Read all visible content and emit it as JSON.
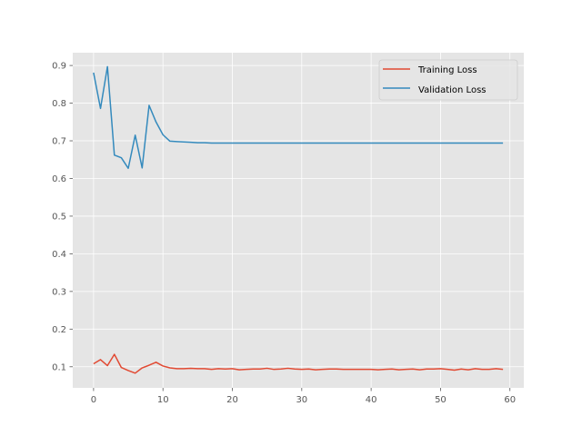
{
  "chart_data": {
    "type": "line",
    "title": "",
    "xlabel": "",
    "ylabel": "",
    "xlim": [
      -3,
      62
    ],
    "ylim": [
      0.044,
      0.934
    ],
    "x_ticks": [
      0,
      10,
      20,
      30,
      40,
      50,
      60
    ],
    "y_ticks": [
      0.1,
      0.2,
      0.3,
      0.4,
      0.5,
      0.6,
      0.7,
      0.8,
      0.9
    ],
    "grid": true,
    "legend_position": "top-right",
    "series": [
      {
        "name": "Training Loss",
        "color": "#e24a33",
        "x": [
          0,
          1,
          2,
          3,
          4,
          5,
          6,
          7,
          8,
          9,
          10,
          11,
          12,
          13,
          14,
          15,
          16,
          17,
          18,
          19,
          20,
          21,
          22,
          23,
          24,
          25,
          26,
          27,
          28,
          29,
          30,
          31,
          32,
          33,
          34,
          35,
          36,
          37,
          38,
          39,
          40,
          41,
          42,
          43,
          44,
          45,
          46,
          47,
          48,
          49,
          50,
          51,
          52,
          53,
          54,
          55,
          56,
          57,
          58,
          59
        ],
        "values": [
          0.108,
          0.119,
          0.103,
          0.133,
          0.098,
          0.09,
          0.083,
          0.097,
          0.104,
          0.112,
          0.102,
          0.097,
          0.095,
          0.095,
          0.096,
          0.095,
          0.095,
          0.093,
          0.095,
          0.094,
          0.095,
          0.092,
          0.093,
          0.094,
          0.094,
          0.096,
          0.093,
          0.094,
          0.096,
          0.094,
          0.093,
          0.094,
          0.092,
          0.093,
          0.094,
          0.094,
          0.093,
          0.093,
          0.093,
          0.093,
          0.093,
          0.092,
          0.093,
          0.094,
          0.092,
          0.093,
          0.094,
          0.092,
          0.094,
          0.094,
          0.095,
          0.093,
          0.091,
          0.094,
          0.092,
          0.095,
          0.093,
          0.093,
          0.095,
          0.093
        ]
      },
      {
        "name": "Validation Loss",
        "color": "#348abd",
        "x": [
          0,
          1,
          2,
          3,
          4,
          5,
          6,
          7,
          8,
          9,
          10,
          11,
          12,
          13,
          14,
          15,
          16,
          17,
          18,
          19,
          20,
          21,
          22,
          23,
          24,
          25,
          26,
          27,
          28,
          29,
          30,
          31,
          32,
          33,
          34,
          35,
          36,
          37,
          38,
          39,
          40,
          41,
          42,
          43,
          44,
          45,
          46,
          47,
          48,
          49,
          50,
          51,
          52,
          53,
          54,
          55,
          56,
          57,
          58,
          59
        ],
        "values": [
          0.881,
          0.786,
          0.897,
          0.662,
          0.655,
          0.627,
          0.715,
          0.628,
          0.794,
          0.75,
          0.716,
          0.699,
          0.698,
          0.697,
          0.696,
          0.695,
          0.695,
          0.694,
          0.694,
          0.694,
          0.694,
          0.694,
          0.694,
          0.694,
          0.694,
          0.694,
          0.694,
          0.694,
          0.694,
          0.694,
          0.694,
          0.694,
          0.694,
          0.694,
          0.694,
          0.694,
          0.694,
          0.694,
          0.694,
          0.694,
          0.694,
          0.694,
          0.694,
          0.694,
          0.694,
          0.694,
          0.694,
          0.694,
          0.694,
          0.694,
          0.694,
          0.694,
          0.694,
          0.694,
          0.694,
          0.694,
          0.694,
          0.694,
          0.694,
          0.694
        ]
      }
    ]
  }
}
